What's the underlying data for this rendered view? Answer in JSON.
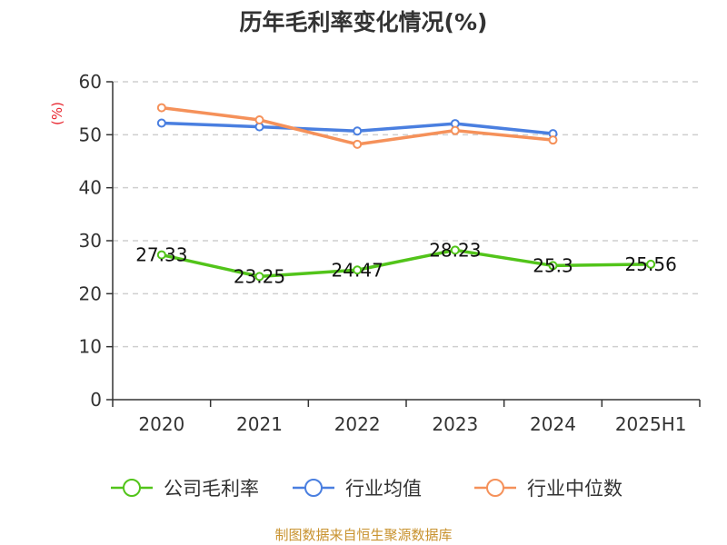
{
  "chart_data": {
    "type": "line",
    "title": "历年毛利率变化情况(%)",
    "ylabel": "(%)",
    "xlabel": "",
    "ylim": [
      0,
      60
    ],
    "yticks": [
      0,
      10,
      20,
      30,
      40,
      50,
      60
    ],
    "grid": true,
    "legend_position": "bottom",
    "categories": [
      "2020",
      "2021",
      "2022",
      "2023",
      "2024",
      "2025H1"
    ],
    "series": [
      {
        "name": "公司毛利率",
        "color": "#52c41a",
        "values": [
          27.33,
          23.25,
          24.47,
          28.23,
          25.3,
          25.56
        ],
        "labels": [
          "27.33",
          "23.25",
          "24.47",
          "28.23",
          "25.3",
          "25.56"
        ]
      },
      {
        "name": "行业均值",
        "color": "#4a7fe0",
        "values": [
          52.2,
          51.5,
          50.7,
          52.1,
          50.2,
          null
        ]
      },
      {
        "name": "行业中位数",
        "color": "#f5915a",
        "values": [
          55.1,
          52.8,
          48.2,
          50.8,
          49.0,
          null
        ]
      }
    ]
  },
  "footer": {
    "source": "制图数据来自恒生聚源数据库"
  }
}
